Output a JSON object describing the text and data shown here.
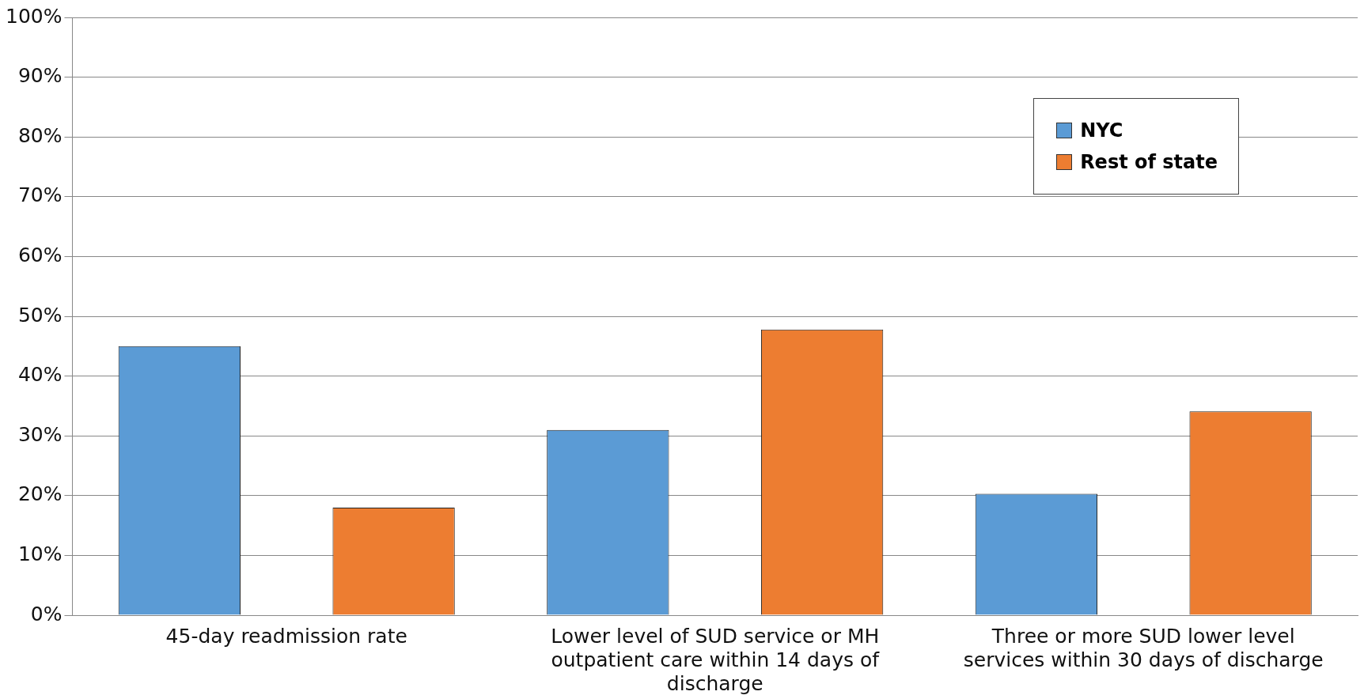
{
  "chart_data": {
    "type": "bar",
    "categories": [
      "45-day readmission rate",
      "Lower level of SUD service or MH outpatient care within 14 days of discharge",
      "Three or more SUD lower level services within 30 days of discharge"
    ],
    "series": [
      {
        "name": "NYC",
        "color": "#5b9bd5",
        "values": [
          45,
          31,
          20.3
        ]
      },
      {
        "name": "Rest of state",
        "color": "#ed7d31",
        "values": [
          18,
          47.8,
          34.1
        ]
      }
    ],
    "ylim": [
      0,
      100
    ],
    "yticks": [
      {
        "value": 0,
        "label": "0%"
      },
      {
        "value": 10,
        "label": "10%"
      },
      {
        "value": 20,
        "label": "20%"
      },
      {
        "value": 30,
        "label": "30%"
      },
      {
        "value": 40,
        "label": "40%"
      },
      {
        "value": 50,
        "label": "50%"
      },
      {
        "value": 60,
        "label": "60%"
      },
      {
        "value": 70,
        "label": "70%"
      },
      {
        "value": 80,
        "label": "80%"
      },
      {
        "value": 90,
        "label": "90%"
      },
      {
        "value": 100,
        "label": "100%"
      }
    ],
    "grid": "y",
    "legend": "top right"
  }
}
